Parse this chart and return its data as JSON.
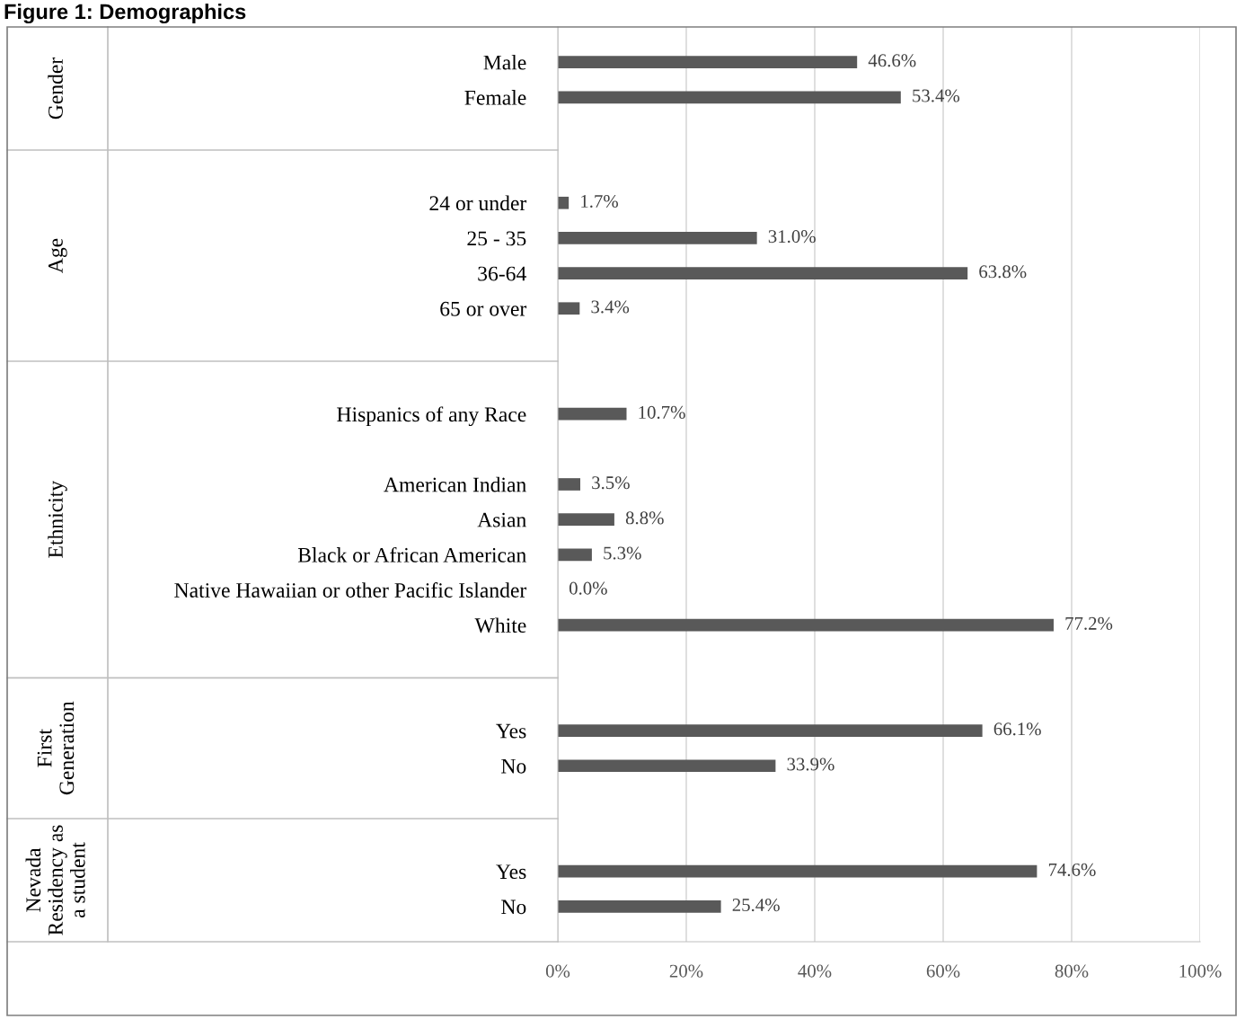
{
  "chart_data": {
    "type": "bar",
    "orientation": "horizontal",
    "title": "Figure 1: Demographics",
    "categories": [
      "Male",
      "Female",
      null,
      null,
      "24 or under",
      "25 - 35",
      "36-64",
      "65 or over",
      null,
      null,
      "Hispanics of any Race",
      null,
      "American Indian",
      "Asian",
      "Black or African American",
      "Native Hawaiian or other Pacific Islander",
      "White",
      null,
      null,
      "Yes",
      "No",
      null,
      null,
      "Yes",
      "No"
    ],
    "values": [
      46.6,
      53.4,
      null,
      null,
      1.7,
      31.0,
      63.8,
      3.4,
      null,
      null,
      10.7,
      null,
      3.5,
      8.8,
      5.3,
      0.0,
      77.2,
      null,
      null,
      66.1,
      33.9,
      null,
      null,
      74.6,
      25.4
    ],
    "value_labels": [
      "46.6%",
      "53.4%",
      null,
      null,
      "1.7%",
      "31.0%",
      "63.8%",
      "3.4%",
      null,
      null,
      "10.7%",
      null,
      "3.5%",
      "8.8%",
      "5.3%",
      "0.0%",
      "77.2%",
      null,
      null,
      "66.1%",
      "33.9%",
      null,
      null,
      "74.6%",
      "25.4%"
    ],
    "color": "#595959",
    "xlim": [
      0,
      100
    ],
    "xticks": [
      {
        "value": 0,
        "label": "0%"
      },
      {
        "value": 20,
        "label": "20%"
      },
      {
        "value": 40,
        "label": "40%"
      },
      {
        "value": 60,
        "label": "60%"
      },
      {
        "value": 80,
        "label": "80%"
      },
      {
        "value": 100,
        "label": "100%"
      }
    ],
    "grid": "x",
    "legend": false,
    "annotations": [
      "Gender",
      "Age",
      "Ethnicity",
      "First\nGeneration",
      "Nevada\nResidency as\na student"
    ]
  }
}
